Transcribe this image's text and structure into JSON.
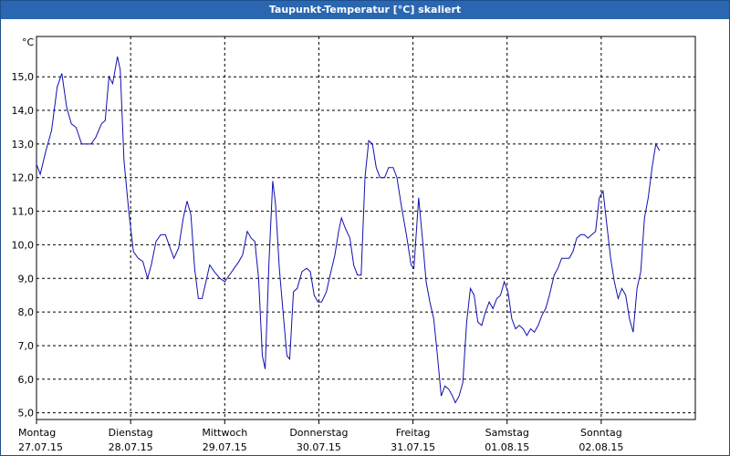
{
  "window": {
    "title": "Taupunkt-Temperatur [°C] skaliert"
  },
  "colors": {
    "line": "#1010b0",
    "title_bg": "#2a67b0",
    "grid": "#000000"
  },
  "chart_data": {
    "type": "line",
    "ylabel": "°C",
    "ylim": [
      4.8,
      16.2
    ],
    "yticks": [
      5.0,
      6.0,
      7.0,
      8.0,
      9.0,
      10.0,
      11.0,
      12.0,
      13.0,
      14.0,
      15.0
    ],
    "ytick_labels": [
      "5,0",
      "6,0",
      "7,0",
      "8,0",
      "9,0",
      "10,0",
      "11,0",
      "12,0",
      "13,0",
      "14,0",
      "15,0"
    ],
    "x_days": [
      {
        "day": "Montag",
        "date": "27.07.15"
      },
      {
        "day": "Dienstag",
        "date": "28.07.15"
      },
      {
        "day": "Mittwoch",
        "date": "29.07.15"
      },
      {
        "day": "Donnerstag",
        "date": "30.07.15"
      },
      {
        "day": "Freitag",
        "date": "31.07.15"
      },
      {
        "day": "Samstag",
        "date": "01.08.15"
      },
      {
        "day": "Sonntag",
        "date": "02.08.15"
      }
    ],
    "x_range_days": [
      0,
      7
    ],
    "grid": true,
    "series": [
      {
        "values": [
          [
            0.0,
            12.4
          ],
          [
            0.04,
            12.1
          ],
          [
            0.1,
            12.8
          ],
          [
            0.16,
            13.4
          ],
          [
            0.22,
            14.7
          ],
          [
            0.27,
            15.1
          ],
          [
            0.32,
            14.1
          ],
          [
            0.37,
            13.6
          ],
          [
            0.42,
            13.5
          ],
          [
            0.48,
            13.0
          ],
          [
            0.53,
            13.0
          ],
          [
            0.58,
            13.0
          ],
          [
            0.63,
            13.2
          ],
          [
            0.69,
            13.6
          ],
          [
            0.73,
            13.7
          ],
          [
            0.77,
            15.0
          ],
          [
            0.81,
            14.8
          ],
          [
            0.86,
            15.6
          ],
          [
            0.89,
            15.2
          ],
          [
            0.93,
            12.5
          ],
          [
            0.98,
            11.0
          ],
          [
            1.03,
            9.8
          ],
          [
            1.08,
            9.6
          ],
          [
            1.13,
            9.5
          ],
          [
            1.18,
            9.0
          ],
          [
            1.22,
            9.4
          ],
          [
            1.27,
            10.1
          ],
          [
            1.32,
            10.3
          ],
          [
            1.37,
            10.3
          ],
          [
            1.42,
            9.9
          ],
          [
            1.46,
            9.6
          ],
          [
            1.51,
            9.9
          ],
          [
            1.56,
            10.8
          ],
          [
            1.6,
            11.3
          ],
          [
            1.64,
            10.9
          ],
          [
            1.68,
            9.3
          ],
          [
            1.72,
            8.4
          ],
          [
            1.76,
            8.4
          ],
          [
            1.8,
            8.9
          ],
          [
            1.84,
            9.4
          ],
          [
            1.89,
            9.2
          ],
          [
            1.95,
            9.0
          ],
          [
            2.0,
            8.9
          ],
          [
            2.05,
            9.1
          ],
          [
            2.1,
            9.3
          ],
          [
            2.15,
            9.5
          ],
          [
            2.19,
            9.7
          ],
          [
            2.24,
            10.4
          ],
          [
            2.28,
            10.2
          ],
          [
            2.32,
            10.1
          ],
          [
            2.36,
            9.0
          ],
          [
            2.4,
            6.7
          ],
          [
            2.43,
            6.3
          ],
          [
            2.47,
            9.5
          ],
          [
            2.51,
            11.9
          ],
          [
            2.54,
            11.2
          ],
          [
            2.58,
            9.3
          ],
          [
            2.62,
            8.0
          ],
          [
            2.66,
            6.7
          ],
          [
            2.69,
            6.6
          ],
          [
            2.73,
            8.6
          ],
          [
            2.77,
            8.7
          ],
          [
            2.82,
            9.2
          ],
          [
            2.87,
            9.3
          ],
          [
            2.91,
            9.2
          ],
          [
            2.95,
            8.5
          ],
          [
            2.99,
            8.3
          ],
          [
            3.03,
            8.3
          ],
          [
            3.08,
            8.6
          ],
          [
            3.12,
            9.1
          ],
          [
            3.17,
            9.7
          ],
          [
            3.21,
            10.4
          ],
          [
            3.24,
            10.8
          ],
          [
            3.28,
            10.5
          ],
          [
            3.33,
            10.2
          ],
          [
            3.37,
            9.4
          ],
          [
            3.41,
            9.1
          ],
          [
            3.45,
            9.1
          ],
          [
            3.49,
            12.0
          ],
          [
            3.53,
            13.1
          ],
          [
            3.57,
            13.0
          ],
          [
            3.61,
            12.3
          ],
          [
            3.65,
            12.0
          ],
          [
            3.7,
            12.0
          ],
          [
            3.74,
            12.3
          ],
          [
            3.79,
            12.3
          ],
          [
            3.83,
            12.0
          ],
          [
            3.88,
            11.1
          ],
          [
            3.93,
            10.3
          ],
          [
            3.98,
            9.4
          ],
          [
            4.01,
            9.3
          ],
          [
            4.06,
            11.4
          ],
          [
            4.1,
            10.2
          ],
          [
            4.14,
            8.9
          ],
          [
            4.18,
            8.3
          ],
          [
            4.22,
            7.8
          ],
          [
            4.26,
            6.7
          ],
          [
            4.3,
            5.5
          ],
          [
            4.34,
            5.8
          ],
          [
            4.38,
            5.7
          ],
          [
            4.42,
            5.5
          ],
          [
            4.45,
            5.3
          ],
          [
            4.49,
            5.5
          ],
          [
            4.53,
            5.9
          ],
          [
            4.57,
            7.7
          ],
          [
            4.61,
            8.7
          ],
          [
            4.65,
            8.5
          ],
          [
            4.69,
            7.7
          ],
          [
            4.73,
            7.6
          ],
          [
            4.77,
            8.0
          ],
          [
            4.81,
            8.3
          ],
          [
            4.85,
            8.1
          ],
          [
            4.89,
            8.4
          ],
          [
            4.93,
            8.5
          ],
          [
            4.97,
            8.9
          ],
          [
            5.01,
            8.6
          ],
          [
            5.05,
            7.8
          ],
          [
            5.09,
            7.5
          ],
          [
            5.13,
            7.6
          ],
          [
            5.17,
            7.5
          ],
          [
            5.21,
            7.3
          ],
          [
            5.25,
            7.5
          ],
          [
            5.29,
            7.4
          ],
          [
            5.33,
            7.6
          ],
          [
            5.37,
            7.9
          ],
          [
            5.41,
            8.1
          ],
          [
            5.45,
            8.5
          ],
          [
            5.5,
            9.1
          ],
          [
            5.54,
            9.3
          ],
          [
            5.58,
            9.6
          ],
          [
            5.62,
            9.6
          ],
          [
            5.66,
            9.6
          ],
          [
            5.7,
            9.8
          ],
          [
            5.74,
            10.2
          ],
          [
            5.78,
            10.3
          ],
          [
            5.82,
            10.3
          ],
          [
            5.86,
            10.2
          ],
          [
            5.9,
            10.3
          ],
          [
            5.94,
            10.4
          ],
          [
            5.98,
            11.4
          ],
          [
            6.02,
            11.6
          ],
          [
            6.06,
            10.6
          ],
          [
            6.1,
            9.6
          ],
          [
            6.14,
            8.9
          ],
          [
            6.18,
            8.4
          ],
          [
            6.22,
            8.7
          ],
          [
            6.26,
            8.5
          ],
          [
            6.3,
            7.8
          ],
          [
            6.34,
            7.4
          ],
          [
            6.38,
            8.7
          ],
          [
            6.42,
            9.2
          ],
          [
            6.46,
            10.8
          ],
          [
            6.5,
            11.4
          ],
          [
            6.54,
            12.3
          ],
          [
            6.58,
            13.0
          ],
          [
            6.62,
            12.8
          ]
        ]
      }
    ]
  }
}
